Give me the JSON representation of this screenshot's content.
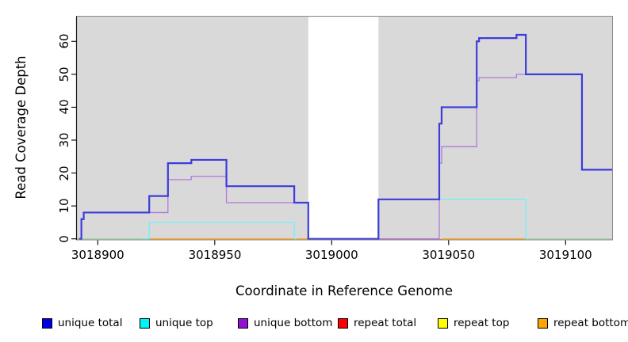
{
  "figure": {
    "background": "#FFFFFF",
    "panel_background": "#D9D9D9"
  },
  "axes": {
    "x": {
      "title": "Coordinate in Reference Genome",
      "ticks": [
        3018900,
        3018950,
        3019000,
        3019050,
        3019100
      ],
      "tick_labels": [
        "3018900",
        "3018950",
        "3019000",
        "3019050",
        "3019100"
      ],
      "range": [
        3018891,
        3019120
      ]
    },
    "y": {
      "title": "Read Coverage Depth",
      "ticks": [
        0,
        10,
        20,
        30,
        40,
        50,
        60
      ],
      "tick_labels": [
        "0",
        "10",
        "20",
        "30",
        "40",
        "50",
        "60"
      ],
      "range": [
        0,
        67.6
      ]
    }
  },
  "chart_data": {
    "type": "line",
    "subtype": "step-coverage",
    "title": "",
    "xlabel": "Coordinate in Reference Genome",
    "ylabel": "Read Coverage Depth",
    "xlim": [
      3018891,
      3019120
    ],
    "ylim": [
      0,
      67.6
    ],
    "grid": false,
    "legend_position": "bottom",
    "gap_region": {
      "from": 3018990,
      "to": 3019020,
      "color": "#FFFFFF"
    },
    "series": [
      {
        "name": "unique total",
        "color": "#3C3CDC",
        "width": 2.2,
        "paths": [
          [
            [
              3018892,
              0
            ],
            [
              3018893,
              6
            ],
            [
              3018894,
              8
            ],
            [
              3018922,
              13
            ],
            [
              3018930,
              23
            ],
            [
              3018940,
              24
            ],
            [
              3018955,
              16
            ],
            [
              3018984,
              11
            ],
            [
              3018990,
              0
            ],
            [
              3019020,
              12
            ],
            [
              3019046,
              35
            ],
            [
              3019047,
              40
            ],
            [
              3019062,
              60
            ],
            [
              3019063,
              61
            ],
            [
              3019079,
              62
            ],
            [
              3019083,
              50
            ],
            [
              3019107,
              21
            ],
            [
              3019120,
              21
            ]
          ]
        ]
      },
      {
        "name": "unique top",
        "color": "#74EFF2",
        "width": 1.3,
        "paths": [
          [
            [
              3018919,
              0
            ],
            [
              3018922,
              5
            ],
            [
              3018984,
              0
            ],
            [
              3018985,
              0
            ]
          ],
          [
            [
              3019020,
              12
            ],
            [
              3019083,
              0
            ],
            [
              3019084,
              0
            ]
          ]
        ]
      },
      {
        "name": "unique bottom",
        "color": "#B478DC",
        "width": 1.3,
        "paths": [
          [
            [
              3018892,
              0
            ],
            [
              3018893,
              6
            ],
            [
              3018894,
              8
            ],
            [
              3018930,
              18
            ],
            [
              3018940,
              19
            ],
            [
              3018955,
              11
            ],
            [
              3018990,
              0
            ],
            [
              3019046,
              23
            ],
            [
              3019047,
              28
            ],
            [
              3019062,
              48
            ],
            [
              3019063,
              49
            ],
            [
              3019079,
              50
            ],
            [
              3019107,
              21
            ],
            [
              3019120,
              21
            ]
          ]
        ]
      },
      {
        "name": "repeat total",
        "color": "#E04858",
        "width": 1.3,
        "paths": [
          [
            [
              3019020,
              0
            ],
            [
              3019047,
              0
            ]
          ]
        ],
        "dy": 1.1
      },
      {
        "name": "repeat top",
        "color": "#FFFF00",
        "width": 1.3,
        "paths": []
      },
      {
        "name": "repeat bottom",
        "color": "#FFA51E",
        "width": 1.3,
        "paths": [
          [
            [
              3018921,
              0
            ],
            [
              3018990,
              0
            ]
          ],
          [
            [
              3019047,
              0
            ],
            [
              3019083,
              0
            ]
          ]
        ]
      }
    ],
    "baseline_segments": [
      {
        "name": "zero-line-left-green",
        "from": 3018891,
        "to": 3018919,
        "color": "#A5D6A5"
      },
      {
        "name": "zero-line-right-green",
        "from": 3019083,
        "to": 3019120,
        "color": "#A5D6A5"
      }
    ]
  },
  "legend": {
    "items": [
      {
        "label": "unique total",
        "color": "#0000E8"
      },
      {
        "label": "unique top",
        "color": "#00F5F5"
      },
      {
        "label": "unique bottom",
        "color": "#9112D2"
      },
      {
        "label": "repeat total",
        "color": "#FF0000"
      },
      {
        "label": "repeat top",
        "color": "#FFFF00"
      },
      {
        "label": "repeat bottom",
        "color": "#FFA500"
      }
    ]
  }
}
